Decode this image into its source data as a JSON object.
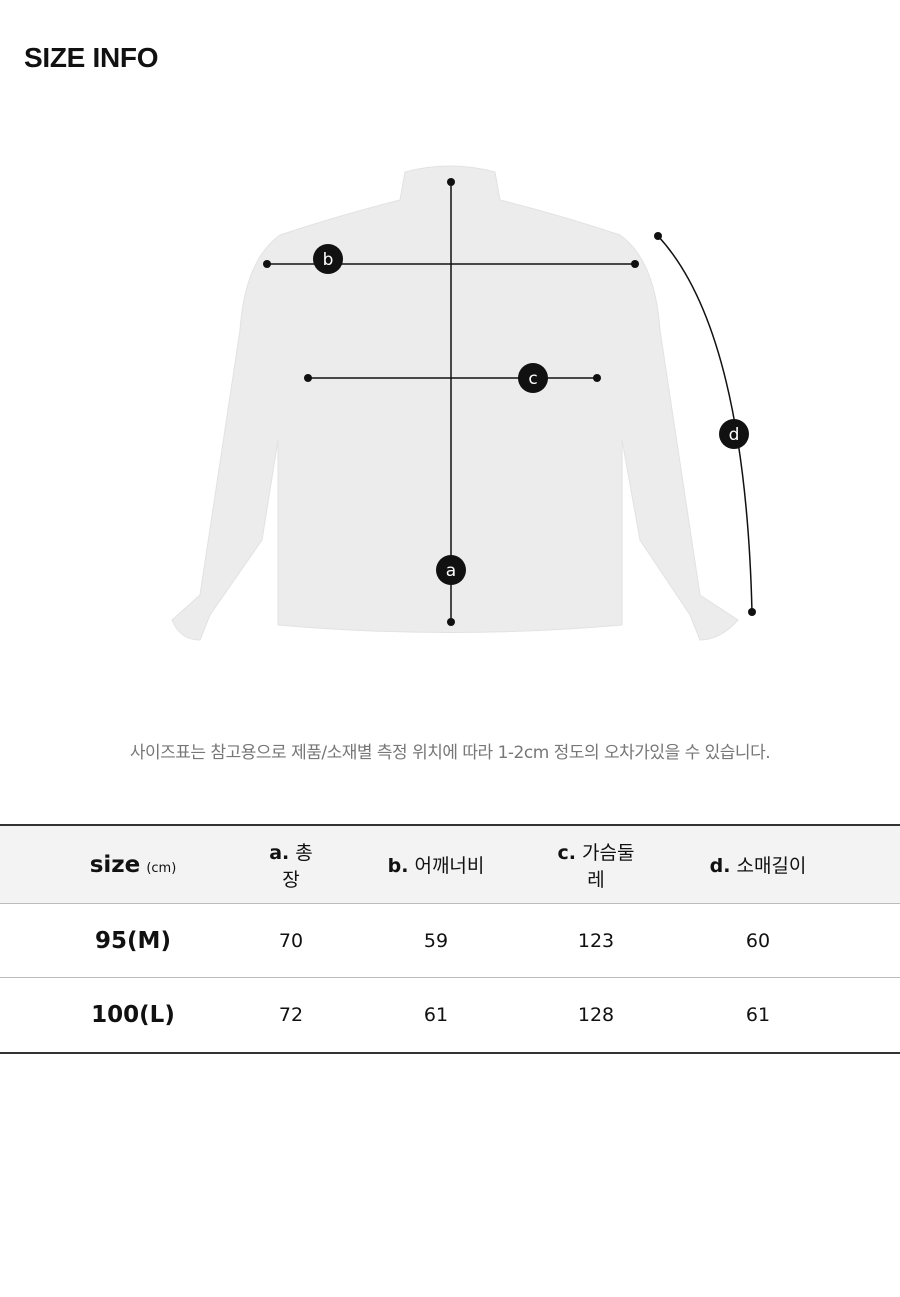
{
  "title": "SIZE INFO",
  "diagram": {
    "markers": [
      "a",
      "b",
      "c",
      "d"
    ]
  },
  "note": "사이즈표는 참고용으로 제품/소재별 측정 위치에 따라 1-2cm 정도의 오차가있을 수 있습니다.",
  "table": {
    "header": {
      "size": "size",
      "unit": "(cm)",
      "cols": [
        {
          "key": "a.",
          "label": "총장"
        },
        {
          "key": "b.",
          "label": "어깨너비"
        },
        {
          "key": "c.",
          "label": "가슴둘레"
        },
        {
          "key": "d.",
          "label": "소매길이"
        }
      ]
    },
    "rows": [
      {
        "size": "95(M)",
        "values": [
          "70",
          "59",
          "123",
          "60"
        ]
      },
      {
        "size": "100(L)",
        "values": [
          "72",
          "61",
          "128",
          "61"
        ]
      }
    ]
  }
}
